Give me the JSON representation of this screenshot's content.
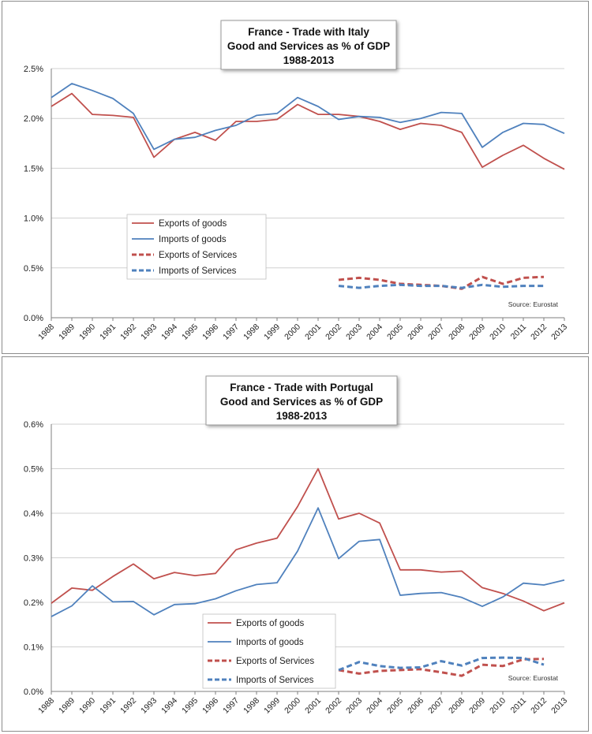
{
  "chart_data": [
    {
      "type": "line",
      "title": [
        "France - Trade with Italy",
        "Good and Services as % of GDP",
        "1988-2013"
      ],
      "xlabel": "",
      "ylabel": "",
      "categories": [
        "1988",
        "1989",
        "1990",
        "1991",
        "1992",
        "1993",
        "1994",
        "1995",
        "1996",
        "1997",
        "1998",
        "1999",
        "2000",
        "2001",
        "2002",
        "2003",
        "2004",
        "2005",
        "2006",
        "2007",
        "2008",
        "2009",
        "2010",
        "2011",
        "2012",
        "2013"
      ],
      "ylim": [
        0,
        2.5
      ],
      "yticks": [
        0,
        0.5,
        1.0,
        1.5,
        2.0,
        2.5
      ],
      "ytick_labels": [
        "0.0%",
        "0.5%",
        "1.0%",
        "1.5%",
        "2.0%",
        "2.5%"
      ],
      "grid": true,
      "legend_position": "center-left",
      "source": "Source: Eurostat",
      "series": [
        {
          "name": "Exports of goods",
          "color": "#c0504d",
          "style": "solid",
          "values": [
            2.12,
            2.25,
            2.04,
            2.03,
            2.01,
            1.61,
            1.79,
            1.86,
            1.78,
            1.97,
            1.97,
            1.99,
            2.14,
            2.04,
            2.04,
            2.02,
            1.97,
            1.89,
            1.95,
            1.93,
            1.86,
            1.51,
            1.63,
            1.73,
            1.6,
            1.49
          ]
        },
        {
          "name": "Imports of goods",
          "color": "#4f81bd",
          "style": "solid",
          "values": [
            2.21,
            2.35,
            2.28,
            2.2,
            2.05,
            1.69,
            1.79,
            1.81,
            1.88,
            1.93,
            2.03,
            2.05,
            2.21,
            2.12,
            1.99,
            2.02,
            2.01,
            1.96,
            2.0,
            2.06,
            2.05,
            1.71,
            1.86,
            1.95,
            1.94,
            1.85
          ]
        },
        {
          "name": "Exports of Services",
          "color": "#c0504d",
          "style": "dashed",
          "values": [
            null,
            null,
            null,
            null,
            null,
            null,
            null,
            null,
            null,
            null,
            null,
            null,
            null,
            null,
            0.38,
            0.4,
            0.38,
            0.34,
            0.33,
            0.32,
            0.29,
            0.41,
            0.34,
            0.4,
            0.41,
            null
          ]
        },
        {
          "name": "Imports of Services",
          "color": "#4f81bd",
          "style": "dashed",
          "values": [
            null,
            null,
            null,
            null,
            null,
            null,
            null,
            null,
            null,
            null,
            null,
            null,
            null,
            null,
            0.32,
            0.3,
            0.32,
            0.33,
            0.32,
            0.32,
            0.3,
            0.33,
            0.31,
            0.32,
            0.32,
            null
          ]
        }
      ]
    },
    {
      "type": "line",
      "title": [
        "France - Trade with Portugal",
        "Good and Services as % of GDP",
        "1988-2013"
      ],
      "xlabel": "",
      "ylabel": "",
      "categories": [
        "1988",
        "1989",
        "1990",
        "1991",
        "1992",
        "1993",
        "1994",
        "1995",
        "1996",
        "1997",
        "1998",
        "1999",
        "2000",
        "2001",
        "2002",
        "2003",
        "2004",
        "2005",
        "2006",
        "2007",
        "2008",
        "2009",
        "2010",
        "2011",
        "2012",
        "2013"
      ],
      "ylim": [
        0,
        0.6
      ],
      "yticks": [
        0,
        0.1,
        0.2,
        0.3,
        0.4,
        0.5,
        0.6
      ],
      "ytick_labels": [
        "0.0%",
        "0.1%",
        "0.2%",
        "0.3%",
        "0.4%",
        "0.5%",
        "0.6%"
      ],
      "grid": true,
      "legend_position": "bottom-center",
      "source": "Source: Eurostat",
      "series": [
        {
          "name": "Exports of goods",
          "color": "#c0504d",
          "style": "solid",
          "values": [
            0.198,
            0.232,
            0.227,
            0.258,
            0.286,
            0.253,
            0.267,
            0.26,
            0.265,
            0.318,
            0.333,
            0.344,
            0.415,
            0.5,
            0.387,
            0.4,
            0.378,
            0.273,
            0.273,
            0.268,
            0.27,
            0.233,
            0.22,
            0.203,
            0.181,
            0.199
          ]
        },
        {
          "name": "Imports of goods",
          "color": "#4f81bd",
          "style": "solid",
          "values": [
            0.168,
            0.192,
            0.237,
            0.201,
            0.202,
            0.172,
            0.195,
            0.197,
            0.208,
            0.226,
            0.24,
            0.244,
            0.315,
            0.412,
            0.298,
            0.337,
            0.341,
            0.216,
            0.22,
            0.222,
            0.211,
            0.191,
            0.212,
            0.243,
            0.239,
            0.25
          ]
        },
        {
          "name": "Exports of Services",
          "color": "#c0504d",
          "style": "dashed",
          "values": [
            null,
            null,
            null,
            null,
            null,
            null,
            null,
            null,
            null,
            null,
            null,
            null,
            null,
            null,
            0.048,
            0.04,
            0.046,
            0.048,
            0.05,
            0.043,
            0.035,
            0.06,
            0.057,
            0.072,
            0.073,
            null
          ]
        },
        {
          "name": "Imports of Services",
          "color": "#4f81bd",
          "style": "dashed",
          "values": [
            null,
            null,
            null,
            null,
            null,
            null,
            null,
            null,
            null,
            null,
            null,
            null,
            null,
            null,
            0.048,
            0.066,
            0.057,
            0.053,
            0.054,
            0.068,
            0.058,
            0.075,
            0.076,
            0.075,
            0.06,
            null
          ]
        }
      ]
    }
  ]
}
